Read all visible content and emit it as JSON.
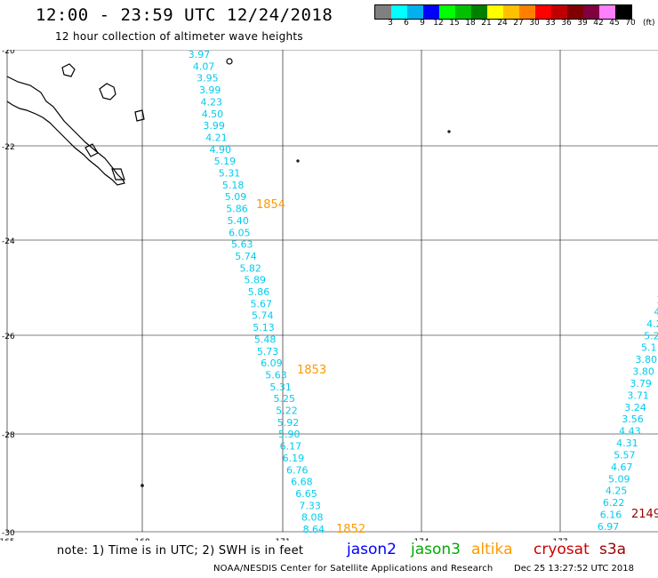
{
  "header": {
    "title": "12:00 - 23:59 UTC 12/24/2018",
    "subtitle": "12 hour collection of altimeter wave heights"
  },
  "colorbar": {
    "colors": [
      "#808080",
      "#00ffff",
      "#00b0f0",
      "#0000ff",
      "#00ff00",
      "#00c000",
      "#008000",
      "#ffff00",
      "#ffc000",
      "#ff8000",
      "#ff0000",
      "#c00000",
      "#800000",
      "#800040",
      "#ff80ff",
      "#000000"
    ],
    "labels": [
      "3",
      "6",
      "9",
      "12",
      "15",
      "18",
      "21",
      "24",
      "27",
      "30",
      "33",
      "36",
      "39",
      "42",
      "45",
      "70"
    ],
    "unit": "(ft)"
  },
  "map": {
    "lon_labels": [
      "165",
      "168",
      "171",
      "174",
      "177"
    ],
    "lat_labels": [
      "-20",
      "-22",
      "-24",
      "-26",
      "-28",
      "-30"
    ],
    "track_a": {
      "color": "#00ccee",
      "values": [
        "3.97",
        "4.07",
        "3.95",
        "3.99",
        "4.23",
        "4.50",
        "3.99",
        "4.21",
        "4.90",
        "5.19",
        "5.31",
        "5.18",
        "5.09",
        "5.86",
        "5.40",
        "6.05",
        "5.63",
        "5.74",
        "5.82",
        "5.89",
        "5.86",
        "5.67",
        "5.74",
        "5.13",
        "5.48",
        "5.73",
        "6.09",
        "5.63",
        "5.31",
        "5.25",
        "5.22",
        "5.92",
        "5.90",
        "6.17",
        "6.19",
        "6.76",
        "6.68",
        "6.65",
        "7.33",
        "8.08",
        "8.64"
      ]
    },
    "track_b": {
      "color": "#00ccee",
      "values": [
        "3",
        "4",
        "4.2",
        "5.2",
        "5.1",
        "3.80",
        "3.80",
        "3.79",
        "3.71",
        "3.24",
        "3.56",
        "4.43",
        "4.31",
        "5.57",
        "4.67",
        "5.09",
        "4.25",
        "6.22",
        "6.16",
        "6.97"
      ]
    },
    "time_labels": [
      {
        "text": "1854",
        "color": "#ff9900"
      },
      {
        "text": "1853",
        "color": "#ff9900"
      },
      {
        "text": "1852",
        "color": "#ff9900"
      },
      {
        "text": "2149",
        "color": "#990000"
      }
    ]
  },
  "footer": {
    "note": "note: 1) Time is in UTC; 2) SWH is in feet",
    "legend": [
      {
        "name": "jason2",
        "color": "#0000ff"
      },
      {
        "name": "jason3",
        "color": "#00aa00"
      },
      {
        "name": "altika",
        "color": "#ff9900"
      },
      {
        "name": "cryosat",
        "color": "#cc0000"
      },
      {
        "name": "s3a",
        "color": "#990000"
      }
    ],
    "credit": "NOAA/NESDIS Center for Satellite Applications and Research",
    "stamp": "Dec 25 13:27:52 UTC 2018"
  }
}
